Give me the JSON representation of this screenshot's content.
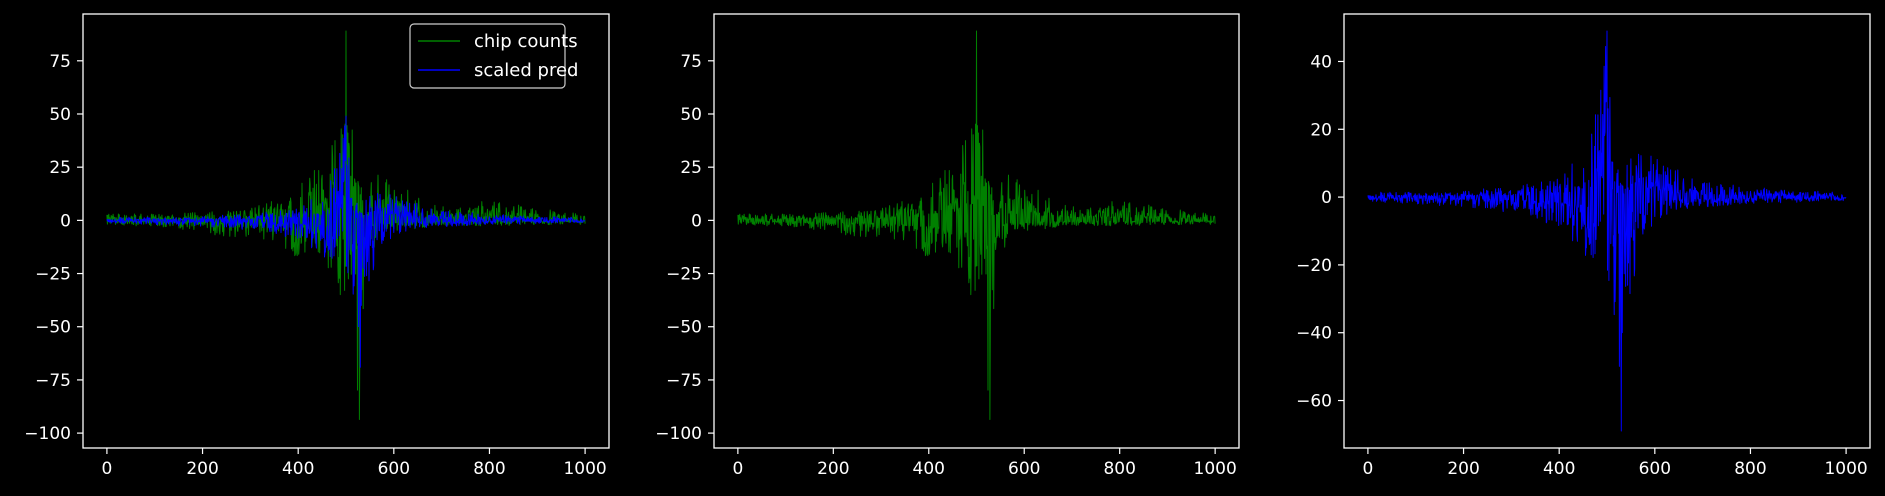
{
  "figure": {
    "background": "#000000",
    "axis_color": "#ffffff",
    "text_color": "#ffffff"
  },
  "chart_data": [
    {
      "type": "line",
      "title": "",
      "xlabel": "",
      "ylabel": "",
      "xlim": [
        -50,
        1050
      ],
      "ylim": [
        -107,
        97
      ],
      "xticks": [
        0,
        200,
        400,
        600,
        800,
        1000
      ],
      "yticks": [
        -100,
        -75,
        -50,
        -25,
        0,
        25,
        50,
        75
      ],
      "legend": {
        "location": "upper right",
        "entries": [
          "chip counts",
          "scaled pred"
        ]
      },
      "series": [
        {
          "name": "chip counts",
          "color": "#008000",
          "ref": "chip_counts"
        },
        {
          "name": "scaled pred",
          "color": "#0000ff",
          "ref": "scaled_pred"
        }
      ]
    },
    {
      "type": "line",
      "title": "",
      "xlabel": "",
      "ylabel": "",
      "xlim": [
        -50,
        1050
      ],
      "ylim": [
        -107,
        97
      ],
      "xticks": [
        0,
        200,
        400,
        600,
        800,
        1000
      ],
      "yticks": [
        -100,
        -75,
        -50,
        -25,
        0,
        25,
        50,
        75
      ],
      "series": [
        {
          "name": "chip counts",
          "color": "#008000",
          "ref": "chip_counts"
        }
      ]
    },
    {
      "type": "line",
      "title": "",
      "xlabel": "",
      "ylabel": "",
      "xlim": [
        -50,
        1050
      ],
      "ylim": [
        -74,
        54
      ],
      "xticks": [
        0,
        200,
        400,
        600,
        800,
        1000
      ],
      "yticks": [
        -60,
        -40,
        -20,
        0,
        20,
        40
      ],
      "series": [
        {
          "name": "scaled pred",
          "color": "#0000ff",
          "ref": "scaled_pred"
        }
      ]
    }
  ],
  "signals": {
    "chip_counts": {
      "x_start": 0,
      "x_end": 1000,
      "envelope": {
        "x": [
          0,
          100,
          200,
          300,
          380,
          420,
          460,
          480,
          495,
          500,
          505,
          510,
          520,
          525,
          530,
          535,
          540,
          545,
          550,
          560,
          570,
          600,
          650,
          700,
          800,
          900,
          1000
        ],
        "upper": [
          3,
          3,
          4,
          6,
          12,
          20,
          30,
          40,
          55,
          89,
          52,
          43,
          42,
          30,
          20,
          10,
          10,
          18,
          22,
          23,
          22,
          18,
          12,
          8,
          9,
          6,
          3
        ],
        "lower": [
          -2,
          -3,
          -6,
          -9,
          -16,
          -22,
          -30,
          -35,
          -40,
          -35,
          -38,
          -45,
          -52,
          -99,
          -90,
          -70,
          -40,
          -28,
          -20,
          -12,
          -8,
          -5,
          -4,
          -3,
          -3,
          -2,
          -2
        ]
      },
      "peak_x": [
        500,
        528
      ]
    },
    "scaled_pred": {
      "x_start": 0,
      "x_end": 1000,
      "envelope": {
        "x": [
          0,
          100,
          200,
          300,
          380,
          420,
          460,
          480,
          490,
          500,
          505,
          510,
          520,
          525,
          530,
          535,
          540,
          545,
          550,
          560,
          570,
          600,
          650,
          700,
          800,
          900,
          1000
        ],
        "upper": [
          1.5,
          1.5,
          2,
          3,
          5,
          9,
          15,
          27,
          38,
          49,
          35,
          15,
          10,
          8,
          6,
          6,
          8,
          12,
          16,
          18,
          20,
          14,
          8,
          5,
          3,
          2,
          1.5
        ],
        "lower": [
          -1.5,
          -2,
          -3,
          -5,
          -8,
          -12,
          -18,
          -25,
          -30,
          -35,
          -40,
          -42,
          -45,
          -66,
          -69,
          -63,
          -50,
          -40,
          -30,
          -22,
          -14,
          -7,
          -4,
          -3,
          -2,
          -1.5,
          -1
        ]
      },
      "peak_x": [
        500,
        530
      ]
    }
  }
}
